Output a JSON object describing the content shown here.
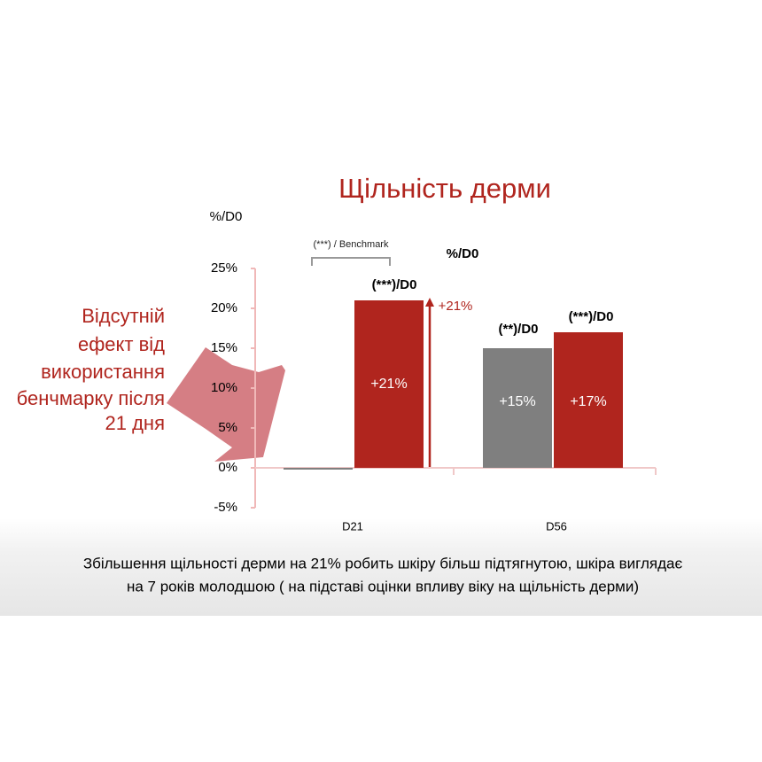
{
  "chart_data": {
    "type": "bar",
    "title": "Щільність дерми",
    "y_label": "%/D0",
    "categories": [
      "D21",
      "D56"
    ],
    "series": [
      {
        "color": "#7f7f7f",
        "values": [
          0,
          15
        ],
        "value_labels": [
          null,
          "+15%"
        ]
      },
      {
        "color": "#b0251e",
        "values": [
          21,
          17
        ],
        "value_labels": [
          "+21%",
          "+17%"
        ]
      }
    ],
    "ylim": [
      -5,
      25
    ],
    "yticks": [
      {
        "value": -5,
        "label": "-5%"
      },
      {
        "value": 0,
        "label": "0%"
      },
      {
        "value": 5,
        "label": "5%"
      },
      {
        "value": 10,
        "label": "10%"
      },
      {
        "value": 15,
        "label": "15%"
      },
      {
        "value": 20,
        "label": "20%"
      },
      {
        "value": 25,
        "label": "25%"
      }
    ],
    "annotations": [
      "(***) / Benchmark",
      "(***)/D0",
      "%/D0",
      "+21%",
      "(**)/D0",
      "(***)/D0"
    ],
    "side_note": [
      "Відсутній",
      "ефект від",
      "використання",
      "бенчмарку після",
      "21 дня"
    ],
    "caption": [
      "Збільшення щільності дерми на 21% робить шкіру більш підтягнутою, шкіра виглядає",
      "на 7 років молодшою ( на підставі оцінки впливу віку на щільність дерми)"
    ]
  }
}
